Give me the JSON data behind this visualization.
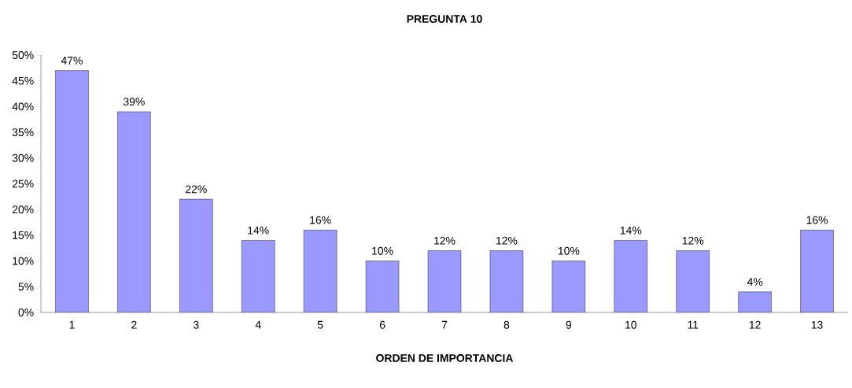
{
  "chart_data": {
    "type": "bar",
    "title": "**PREGUNTA 10**",
    "xlabel": "**ORDEN DE IMPORTANCIA**",
    "categories": [
      "1",
      "2",
      "3",
      "4",
      "5",
      "6",
      "7",
      "8",
      "9",
      "10",
      "11",
      "12",
      "13"
    ],
    "values": [
      47,
      39,
      22,
      14,
      16,
      10,
      12,
      12,
      10,
      14,
      12,
      4,
      16
    ],
    "value_labels": [
      "47%",
      "39%",
      "22%",
      "14%",
      "16%",
      "10%",
      "12%",
      "12%",
      "10%",
      "14%",
      "12%",
      "4%",
      "16%"
    ],
    "color": "#9999ff",
    "ylim": [
      0,
      50
    ],
    "yticks": [
      {
        "value": 0,
        "label": "0%"
      },
      {
        "value": 5,
        "label": "5%"
      },
      {
        "value": 10,
        "label": "10%"
      },
      {
        "value": 15,
        "label": "15%"
      },
      {
        "value": 20,
        "label": "20%"
      },
      {
        "value": 25,
        "label": "25%"
      },
      {
        "value": 30,
        "label": "30%"
      },
      {
        "value": 35,
        "label": "35%"
      },
      {
        "value": 40,
        "label": "40%"
      },
      {
        "value": 45,
        "label": "45%"
      },
      {
        "value": 50,
        "label": "50%"
      }
    ],
    "grid": false
  }
}
